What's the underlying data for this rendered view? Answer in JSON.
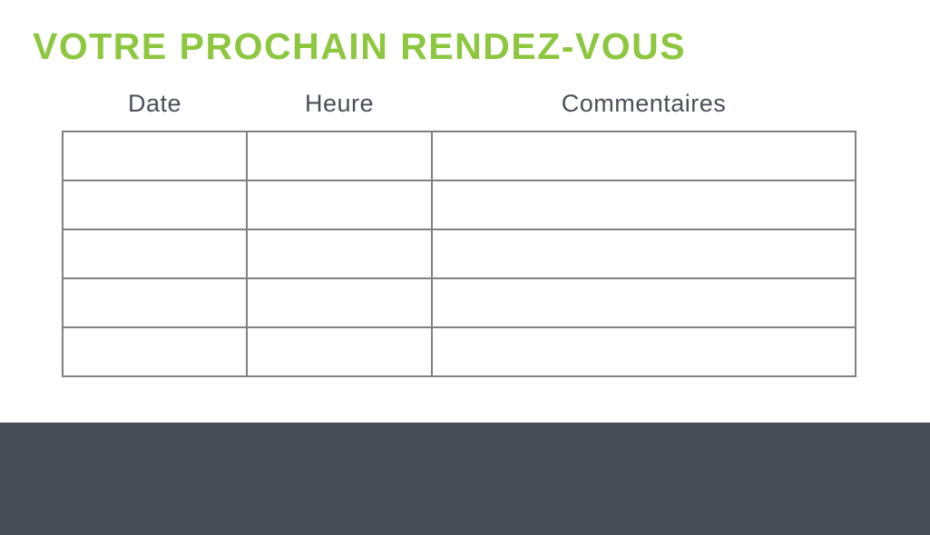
{
  "page": {
    "title": "VOTRE PROCHAIN RENDEZ-VOUS"
  },
  "table": {
    "headers": [
      "Date",
      "Heure",
      "Commentaires"
    ],
    "rows": [
      {
        "date": "",
        "heure": "",
        "commentaires": ""
      },
      {
        "date": "",
        "heure": "",
        "commentaires": ""
      },
      {
        "date": "",
        "heure": "",
        "commentaires": ""
      },
      {
        "date": "",
        "heure": "",
        "commentaires": ""
      },
      {
        "date": "",
        "heure": "",
        "commentaires": ""
      }
    ]
  },
  "colors": {
    "accent_green": "#8DC63F",
    "header_text": "#4A4F58",
    "table_border": "#7E8083",
    "footer_background": "#484D55"
  }
}
